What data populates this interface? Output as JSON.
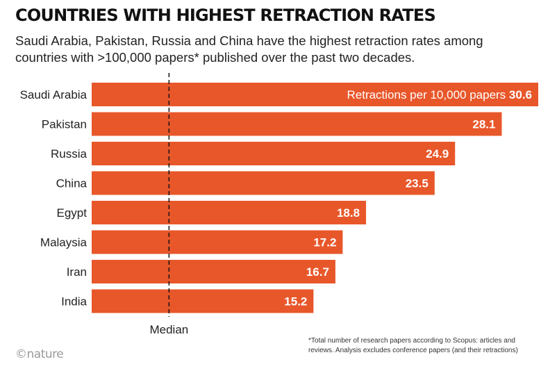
{
  "title": "COUNTRIES WITH HIGHEST RETRACTION RATES",
  "subtitle": "Saudi Arabia, Pakistan, Russia and China have the highest retraction rates among countries with >100,000 papers* published over the past two decades.",
  "footnote": "*Total number of research papers according to Scopus: articles and reviews. Analysis excludes conference papers (and their retractions)",
  "logo": "©nature",
  "colors": {
    "bar": "#e8572a",
    "label_text": "#ffffff",
    "median_line": "#111111"
  },
  "chart_data": {
    "type": "bar",
    "orientation": "horizontal",
    "title": "COUNTRIES WITH HIGHEST RETRACTION RATES",
    "categories": [
      "Saudi Arabia",
      "Pakistan",
      "Russia",
      "China",
      "Egypt",
      "Malaysia",
      "Iran",
      "India"
    ],
    "values": [
      30.6,
      28.1,
      24.9,
      23.5,
      18.8,
      17.2,
      16.7,
      15.2
    ],
    "value_labels": [
      "30.6",
      "28.1",
      "24.9",
      "23.5",
      "18.8",
      "17.2",
      "16.7",
      "15.2"
    ],
    "first_bar_prefix": "Retractions per 10,000 papers",
    "series_name": "Retractions per 10,000 papers",
    "xlim": [
      0,
      30.6
    ],
    "median_value": 5.3,
    "median_label": "Median",
    "grid": false,
    "legend": "none"
  }
}
